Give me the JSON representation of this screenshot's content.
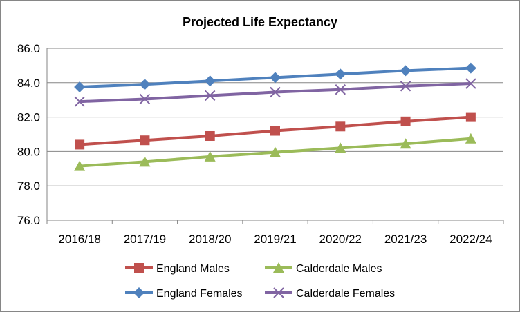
{
  "chart_data": {
    "type": "line",
    "title": "Projected Life Expectancy",
    "xlabel": "",
    "ylabel": "",
    "categories": [
      "2016/18",
      "2017/19",
      "2018/20",
      "2019/21",
      "2020/22",
      "2021/23",
      "2022/24"
    ],
    "ylim": [
      76.0,
      86.0
    ],
    "yticks": [
      "76.0",
      "78.0",
      "80.0",
      "82.0",
      "84.0",
      "86.0"
    ],
    "grid": true,
    "legend_position": "bottom",
    "series": [
      {
        "name": "England Males",
        "color": "#c0504d",
        "marker": "square",
        "values": [
          80.4,
          80.65,
          80.9,
          81.2,
          81.45,
          81.75,
          82.0
        ]
      },
      {
        "name": "Calderdale Males",
        "color": "#9bbb59",
        "marker": "triangle",
        "values": [
          79.15,
          79.4,
          79.7,
          79.95,
          80.2,
          80.45,
          80.75
        ]
      },
      {
        "name": "England Females",
        "color": "#4f81bd",
        "marker": "diamond",
        "values": [
          83.75,
          83.9,
          84.1,
          84.3,
          84.5,
          84.7,
          84.85
        ]
      },
      {
        "name": "Calderdale Females",
        "color": "#8064a2",
        "marker": "x",
        "values": [
          82.9,
          83.05,
          83.25,
          83.45,
          83.6,
          83.8,
          83.95
        ]
      }
    ]
  }
}
